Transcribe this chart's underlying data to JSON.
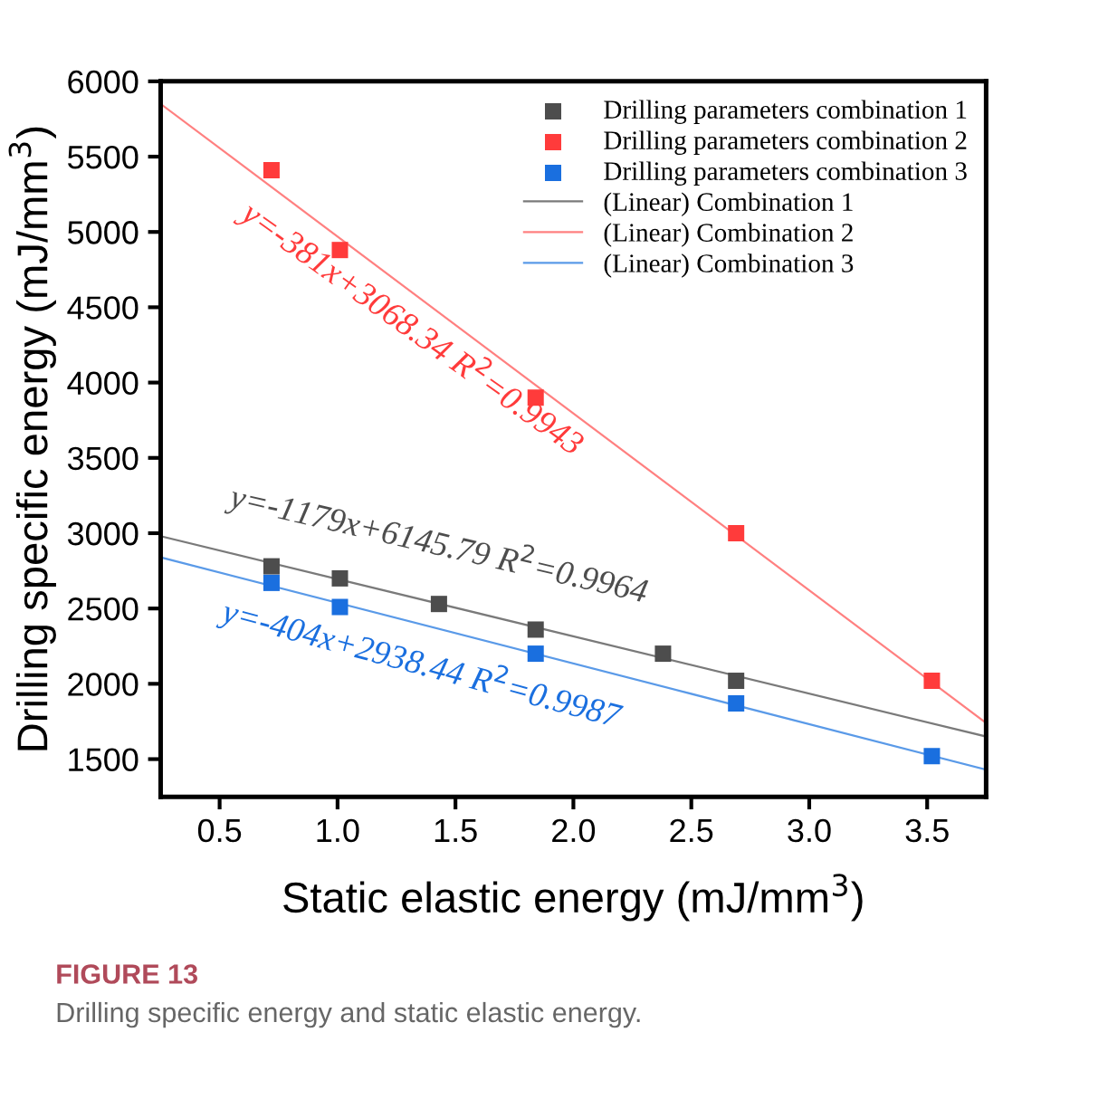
{
  "chart_data": {
    "type": "scatter",
    "xlabel": "Static elastic energy (mJ/mm$^{3}$)",
    "ylabel": "Drilling specific energy (mJ/mm$^{3}$)",
    "xlim": [
      0.25,
      3.75
    ],
    "xticks": [
      {
        "value": 0.5,
        "label": "0.5"
      },
      {
        "value": 1.0,
        "label": "1.0"
      },
      {
        "value": 1.5,
        "label": "1.5"
      },
      {
        "value": 2.0,
        "label": "2.0"
      },
      {
        "value": 2.5,
        "label": "2.5"
      },
      {
        "value": 3.0,
        "label": "3.0"
      },
      {
        "value": 3.5,
        "label": "3.5"
      }
    ],
    "ylim": [
      1250,
      6000
    ],
    "yticks": [
      1500,
      2000,
      2500,
      3000,
      3500,
      4000,
      4500,
      5000,
      5500,
      6000
    ],
    "grid": false,
    "legend": "top right",
    "series": [
      {
        "name": "Drilling parameters combination 1",
        "color": "#4d4d4d",
        "marker": "square",
        "x": [
          0.72,
          1.01,
          1.43,
          1.84,
          2.38,
          2.69
        ],
        "values": [
          2780,
          2700,
          2530,
          2360,
          2200,
          2020
        ]
      },
      {
        "name": "Drilling parameters combination 2",
        "color": "#ff3b3b",
        "marker": "square",
        "x": [
          0.72,
          1.01,
          1.84,
          2.69,
          3.52
        ],
        "values": [
          5410,
          4880,
          3900,
          3000,
          2020
        ]
      },
      {
        "name": "Drilling parameters combination 3",
        "color": "#1a6fdf",
        "marker": "square",
        "x": [
          0.72,
          1.01,
          1.84,
          2.69,
          3.52
        ],
        "values": [
          2670,
          2510,
          2200,
          1870,
          1520
        ]
      },
      {
        "name": "(Linear) Combination 1",
        "type": "line",
        "marker": "none",
        "color": "#7a7a7a",
        "x": [
          0.25,
          3.75
        ],
        "values": [
          2980,
          1650
        ]
      },
      {
        "name": "(Linear) Combination 2",
        "type": "line",
        "marker": "none",
        "color": "#ff8080",
        "x": [
          0.25,
          3.75
        ],
        "values": [
          5850,
          1740
        ]
      },
      {
        "name": "(Linear) Combination 3",
        "type": "line",
        "marker": "none",
        "color": "#5a9ae8",
        "x": [
          0.25,
          3.75
        ],
        "values": [
          2840,
          1430
        ]
      }
    ],
    "annotations": [
      "y=-1179x+6145.79 R$^{2}$=0.9964",
      "y=-381x+3068.34 R$^{2}$=0.9943",
      "y=-404x+2938.44 R$^{2}$=0.9987",
      "FIGURE 13",
      "Drilling specific energy and static elastic energy."
    ]
  }
}
